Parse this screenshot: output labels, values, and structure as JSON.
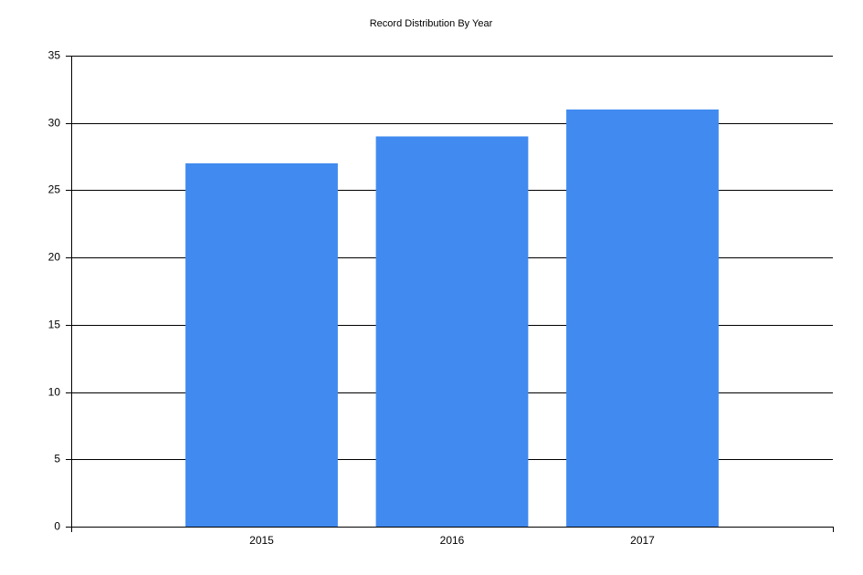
{
  "chart_data": {
    "type": "bar",
    "title": "Record Distribution By Year",
    "categories": [
      "2015",
      "2016",
      "2017"
    ],
    "values": [
      27,
      29,
      31
    ],
    "color": "#418aef",
    "ylim": [
      0,
      35
    ],
    "yticks": [
      0,
      5,
      10,
      15,
      20,
      25,
      30,
      35
    ],
    "grid": true
  }
}
